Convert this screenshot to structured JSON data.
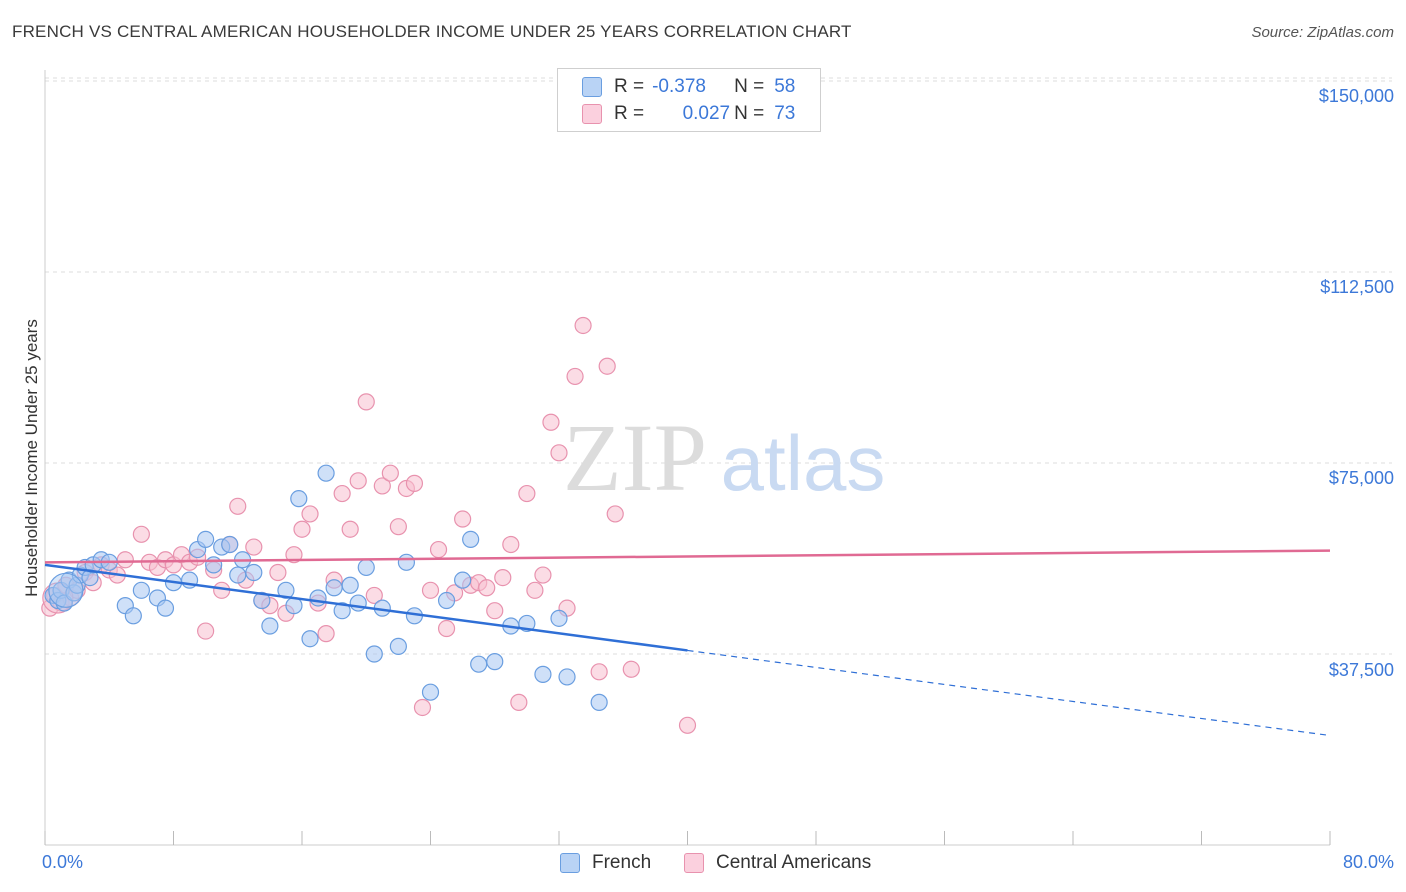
{
  "header": {
    "title": "FRENCH VS CENTRAL AMERICAN HOUSEHOLDER INCOME UNDER 25 YEARS CORRELATION CHART",
    "source": "Source: ZipAtlas.com"
  },
  "watermark": {
    "zip": "ZIP",
    "atlas": "atlas"
  },
  "legend": {
    "r_label": "R =",
    "n_label": "N =",
    "french": {
      "r": "-0.378",
      "n": "58"
    },
    "central": {
      "r": "0.027",
      "n": "73"
    }
  },
  "colors": {
    "french_fill": "#a7c7f2",
    "french_stroke": "#6a9ee0",
    "french_line": "#2f6fd6",
    "central_fill": "#f7bfd0",
    "central_stroke": "#e892ae",
    "central_line": "#e06a93",
    "tick_text": "#3c78d8"
  },
  "chart_data": {
    "type": "scatter",
    "title": "FRENCH VS CENTRAL AMERICAN HOUSEHOLDER INCOME UNDER 25 YEARS CORRELATION CHART",
    "xlabel": "",
    "ylabel": "Householder Income Under 25 years",
    "xlim": [
      0,
      80
    ],
    "ylim": [
      0,
      155000
    ],
    "x_tick_labels": [
      "0.0%",
      "80.0%"
    ],
    "y_ticks": [
      37500,
      75000,
      112500,
      150000
    ],
    "y_tick_labels": [
      "$37,500",
      "$75,000",
      "$112,500",
      "$150,000"
    ],
    "grid": true,
    "legend_position": "top-center",
    "series": [
      {
        "name": "French",
        "r": -0.378,
        "n": 58,
        "trend": {
          "x0": 0,
          "y0": 55000,
          "x1": 40,
          "y1": 38200,
          "dashed_to_x": 80,
          "dashed_to_y": 21500
        },
        "points": [
          [
            0.5,
            49000
          ],
          [
            0.8,
            48000
          ],
          [
            1.0,
            50000
          ],
          [
            1.2,
            47500
          ],
          [
            1.5,
            52000
          ],
          [
            1.8,
            49500
          ],
          [
            2.0,
            51000
          ],
          [
            2.2,
            53000
          ],
          [
            2.5,
            54500
          ],
          [
            2.8,
            52500
          ],
          [
            3.0,
            55000
          ],
          [
            3.5,
            56000
          ],
          [
            4.0,
            55500
          ],
          [
            5.0,
            47000
          ],
          [
            5.5,
            45000
          ],
          [
            6.0,
            50000
          ],
          [
            7.0,
            48500
          ],
          [
            7.5,
            46500
          ],
          [
            8.0,
            51500
          ],
          [
            9.0,
            52000
          ],
          [
            9.5,
            58000
          ],
          [
            10.0,
            60000
          ],
          [
            10.5,
            55000
          ],
          [
            11.0,
            58500
          ],
          [
            11.5,
            59000
          ],
          [
            12.0,
            53000
          ],
          [
            12.3,
            56000
          ],
          [
            13.0,
            53500
          ],
          [
            13.5,
            48000
          ],
          [
            14.0,
            43000
          ],
          [
            15.0,
            50000
          ],
          [
            15.5,
            47000
          ],
          [
            15.8,
            68000
          ],
          [
            16.5,
            40500
          ],
          [
            17.0,
            48500
          ],
          [
            17.5,
            73000
          ],
          [
            18.0,
            50500
          ],
          [
            18.5,
            46000
          ],
          [
            19.0,
            51000
          ],
          [
            19.5,
            47500
          ],
          [
            20.0,
            54500
          ],
          [
            20.5,
            37500
          ],
          [
            21.0,
            46500
          ],
          [
            22.0,
            39000
          ],
          [
            22.5,
            55500
          ],
          [
            23.0,
            45000
          ],
          [
            24.0,
            30000
          ],
          [
            25.0,
            48000
          ],
          [
            26.0,
            52000
          ],
          [
            26.5,
            60000
          ],
          [
            27.0,
            35500
          ],
          [
            28.0,
            36000
          ],
          [
            29.0,
            43000
          ],
          [
            30.0,
            43500
          ],
          [
            31.0,
            33500
          ],
          [
            32.0,
            44500
          ],
          [
            32.5,
            33000
          ],
          [
            34.5,
            28000
          ]
        ]
      },
      {
        "name": "Central Americans",
        "r": 0.027,
        "n": 73,
        "trend": {
          "x0": 0,
          "y0": 55500,
          "x1": 80,
          "y1": 57800
        },
        "points": [
          [
            0.3,
            46500
          ],
          [
            0.6,
            49000
          ],
          [
            1.0,
            47500
          ],
          [
            1.3,
            51000
          ],
          [
            1.6,
            48500
          ],
          [
            2.0,
            50000
          ],
          [
            2.5,
            53500
          ],
          [
            3.0,
            51500
          ],
          [
            3.5,
            55000
          ],
          [
            4.0,
            54000
          ],
          [
            4.5,
            53000
          ],
          [
            5.0,
            56000
          ],
          [
            6.0,
            61000
          ],
          [
            6.5,
            55500
          ],
          [
            7.0,
            54500
          ],
          [
            7.5,
            56000
          ],
          [
            8.0,
            55000
          ],
          [
            8.5,
            57000
          ],
          [
            9.0,
            55500
          ],
          [
            9.5,
            56500
          ],
          [
            10.0,
            42000
          ],
          [
            10.5,
            54000
          ],
          [
            11.0,
            50000
          ],
          [
            11.5,
            59000
          ],
          [
            12.0,
            66500
          ],
          [
            12.5,
            52000
          ],
          [
            13.0,
            58500
          ],
          [
            13.5,
            48000
          ],
          [
            14.0,
            47000
          ],
          [
            14.5,
            53500
          ],
          [
            15.0,
            45500
          ],
          [
            15.5,
            57000
          ],
          [
            16.0,
            62000
          ],
          [
            16.5,
            65000
          ],
          [
            17.0,
            47500
          ],
          [
            17.5,
            41500
          ],
          [
            18.0,
            52000
          ],
          [
            18.5,
            69000
          ],
          [
            19.0,
            62000
          ],
          [
            19.5,
            71500
          ],
          [
            20.0,
            87000
          ],
          [
            20.5,
            49000
          ],
          [
            21.0,
            70500
          ],
          [
            21.5,
            73000
          ],
          [
            22.0,
            62500
          ],
          [
            22.5,
            70000
          ],
          [
            23.0,
            71000
          ],
          [
            23.5,
            27000
          ],
          [
            24.0,
            50000
          ],
          [
            24.5,
            58000
          ],
          [
            25.0,
            42500
          ],
          [
            25.5,
            49500
          ],
          [
            26.0,
            64000
          ],
          [
            26.5,
            51000
          ],
          [
            27.0,
            51500
          ],
          [
            27.5,
            50500
          ],
          [
            28.0,
            46000
          ],
          [
            28.5,
            52500
          ],
          [
            29.0,
            59000
          ],
          [
            29.5,
            28000
          ],
          [
            30.0,
            69000
          ],
          [
            30.5,
            50000
          ],
          [
            31.0,
            53000
          ],
          [
            31.5,
            83000
          ],
          [
            32.0,
            77000
          ],
          [
            32.5,
            46500
          ],
          [
            33.0,
            92000
          ],
          [
            33.5,
            102000
          ],
          [
            34.5,
            34000
          ],
          [
            35.0,
            94000
          ],
          [
            35.5,
            65000
          ],
          [
            36.5,
            34500
          ],
          [
            40.0,
            23500
          ]
        ]
      }
    ]
  },
  "bottom_legend": {
    "french": "French",
    "central": "Central Americans"
  }
}
